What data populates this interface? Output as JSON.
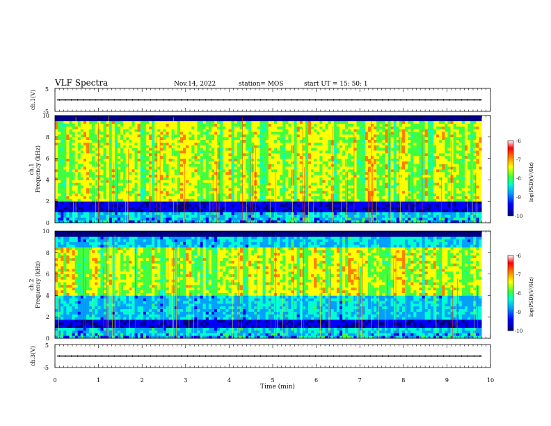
{
  "header": {
    "title": "VLF Spectra",
    "date": "Nov.14, 2022",
    "station": "station= MOS",
    "start": "start  UT  =   15: 50: 1"
  },
  "chart_data": [
    {
      "type": "line",
      "name": "ch1-waveform",
      "ylabel": "ch.1(V)",
      "ylim": [
        -5,
        5
      ],
      "yticks": [
        "5",
        "-5"
      ],
      "xlim": [
        0,
        10
      ],
      "constant_level": 0
    },
    {
      "type": "heatmap",
      "name": "ch1-spectrogram",
      "ylabel_line1": "ch.1",
      "ylabel_line2": "Frequency (kHz)",
      "ylim": [
        0,
        10
      ],
      "yticks": [
        "0",
        "2",
        "4",
        "6",
        "8",
        "10"
      ],
      "xlim": [
        0,
        9.8
      ],
      "colorbar": {
        "label": "log(PSD)(V²/Hz)",
        "range": [
          -10,
          -6
        ],
        "ticks": [
          "-6",
          "-7",
          "-8",
          "-9",
          "-10"
        ]
      },
      "dominant_band_khz": [
        2,
        9.5
      ],
      "dark_band_khz": [
        0.9,
        1.9
      ],
      "seed": 11
    },
    {
      "type": "heatmap",
      "name": "ch2-spectrogram",
      "ylabel_line1": "ch.2",
      "ylabel_line2": "Frequency (kHz)",
      "ylim": [
        0,
        10
      ],
      "yticks": [
        "0",
        "2",
        "4",
        "6",
        "8",
        "10"
      ],
      "xlim": [
        0,
        9.8
      ],
      "colorbar": {
        "label": "log(PSD)(V²/Hz)",
        "range": [
          -10,
          -6
        ],
        "ticks": [
          "-6",
          "-7",
          "-8",
          "-9",
          "-10"
        ]
      },
      "dominant_band_khz": [
        4,
        8.5
      ],
      "dark_band_khz": [
        1.0,
        1.8
      ],
      "seed": 29
    },
    {
      "type": "line",
      "name": "ch3-waveform",
      "ylabel": "ch.3(V)",
      "ylim": [
        -5,
        5
      ],
      "yticks": [
        "5",
        "-5"
      ],
      "xlim": [
        0,
        10
      ],
      "constant_level": 0
    }
  ],
  "xaxis": {
    "label": "Time  (min)",
    "ticks": [
      "0",
      "1",
      "2",
      "3",
      "4",
      "5",
      "6",
      "7",
      "8",
      "9",
      "10"
    ]
  },
  "colors": {
    "colormap": [
      "#000080",
      "#0000ff",
      "#00a0ff",
      "#00ffd0",
      "#40ff40",
      "#ffff00",
      "#ff8000",
      "#ff0000",
      "#ffffff"
    ],
    "axis": "#000000"
  }
}
